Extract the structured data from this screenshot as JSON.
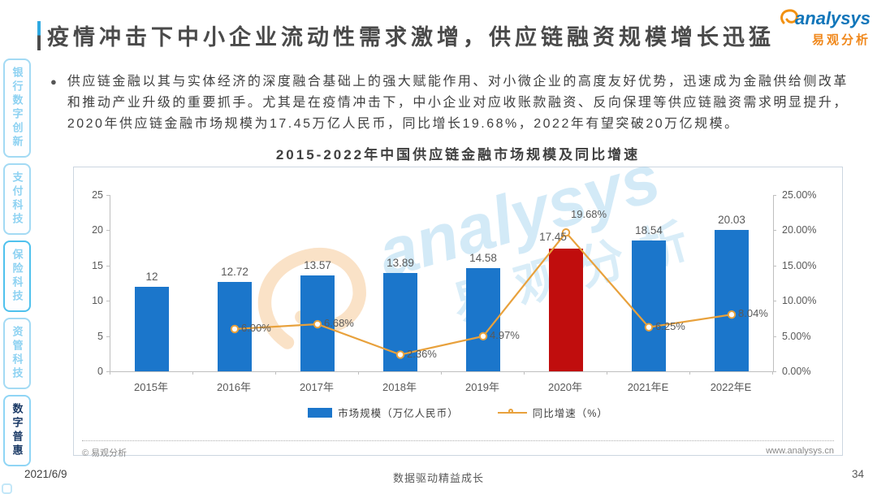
{
  "header": {
    "title": "疫情冲击下中小企业流动性需求激增，供应链融资规模增长迅猛",
    "logo": {
      "brand": "analysys",
      "brand_cn": "易观分析"
    }
  },
  "sidebar": {
    "items": [
      {
        "key": "banking-digital-innovation",
        "label": "银行数字创新",
        "active": false,
        "border_strong": false
      },
      {
        "key": "payment-tech",
        "label": "支付科技",
        "active": false,
        "border_strong": false
      },
      {
        "key": "insurance-tech",
        "label": "保险科技",
        "active": false,
        "border_strong": true
      },
      {
        "key": "asset-mgmt-tech",
        "label": "资管科技",
        "active": false,
        "border_strong": false
      },
      {
        "key": "digital-inclusion",
        "label": "数字普惠",
        "active": true,
        "border_strong": false
      }
    ]
  },
  "body_text": {
    "bullet": "●",
    "paragraph": "供应链金融以其与实体经济的深度融合基础上的强大赋能作用、对小微企业的高度友好优势，迅速成为金融供给侧改革和推动产业升级的重要抓手。尤其是在疫情冲击下，中小企业对应收账款融资、反向保理等供应链融资需求明显提升，2020年供应链金融市场规模为17.45万亿人民币，同比增长19.68%，2022年有望突破20万亿规模。"
  },
  "chart_data": {
    "type": "bar",
    "title": "2015-2022年中国供应链金融市场规模及同比增速",
    "categories": [
      "2015年",
      "2016年",
      "2017年",
      "2018年",
      "2019年",
      "2020年",
      "2021年E",
      "2022年E"
    ],
    "series": [
      {
        "name": "市场规模（万亿人民币）",
        "type": "bar",
        "values": [
          12,
          12.72,
          13.57,
          13.89,
          14.58,
          17.45,
          18.54,
          20.03
        ],
        "labels": [
          "12",
          "12.72",
          "13.57",
          "13.89",
          "14.58",
          "17.45",
          "18.54",
          "20.03"
        ]
      },
      {
        "name": "同比增速（%）",
        "type": "line",
        "values": [
          null,
          6.0,
          6.68,
          2.36,
          4.97,
          19.68,
          6.25,
          8.04
        ],
        "labels": [
          "",
          "6.00%",
          "6.68%",
          "2.36%",
          "4.97%",
          "19.68%",
          "6.25%",
          "8.04%"
        ]
      }
    ],
    "left_axis": {
      "ticks": [
        "0",
        "5",
        "10",
        "15",
        "20",
        "25"
      ],
      "min": 0,
      "max": 25
    },
    "right_axis": {
      "ticks": [
        "0.00%",
        "5.00%",
        "10.00%",
        "15.00%",
        "20.00%",
        "25.00%"
      ],
      "min": 0,
      "max": 25
    },
    "highlight_category": "2020年",
    "bar_color": "#1b76cb",
    "highlight_color": "#c00d0d",
    "line_color": "#e8a13c",
    "grid": false,
    "legend_position": "bottom"
  },
  "chart_footer": {
    "source": "© 易观分析",
    "site": "www.analysys.cn"
  },
  "page_footer": {
    "date": "2021/6/9",
    "slogan": "数据驱动精益成长",
    "page_number": "34"
  },
  "watermark": {
    "text": "analysys",
    "text_cn": "易观分析"
  }
}
